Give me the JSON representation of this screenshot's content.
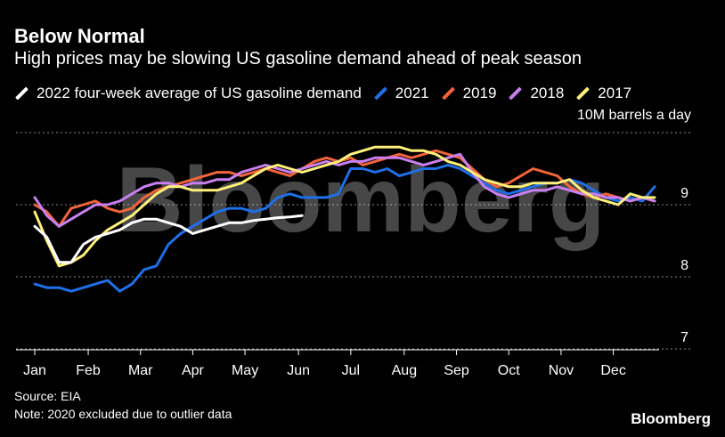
{
  "header": {
    "title": "Below Normal",
    "subtitle": "High prices may be slowing US gasoline demand ahead of peak season"
  },
  "unit_label": "10M barrels a day",
  "footer": {
    "source": "Source: EIA",
    "note": "Note: 2020 excluded due to outlier data",
    "brand": "Bloomberg"
  },
  "watermark": "Bloomberg",
  "colors": {
    "background": "#000000",
    "y2022": "#ffffff",
    "y2021": "#1f6fe8",
    "y2019": "#f2643a",
    "y2018": "#c87ff0",
    "y2017": "#fff07a",
    "grid": "#8a8a8a"
  },
  "chart_data": {
    "type": "line",
    "title": "Below Normal",
    "subtitle": "High prices may be slowing US gasoline demand ahead of peak season",
    "ylabel": "10M barrels a day",
    "xlabel": "",
    "x_tick_labels": [
      "Jan",
      "Feb",
      "Mar",
      "Apr",
      "May",
      "Jun",
      "Jul",
      "Aug",
      "Sep",
      "Oct",
      "Nov",
      "Dec"
    ],
    "y_ticks": [
      7,
      8,
      9
    ],
    "ylim": [
      7,
      10
    ],
    "x_unit": "week of year",
    "grid": "horizontal dotted",
    "legend_position": "top",
    "series": [
      {
        "name": "2022 four-week average of US gasoline demand",
        "color": "#ffffff",
        "x": [
          1,
          2,
          3,
          4,
          5,
          6,
          7,
          8,
          9,
          10,
          11,
          12,
          13,
          14,
          15,
          16,
          17,
          18,
          19,
          20,
          21,
          22,
          23
        ],
        "values": [
          8.7,
          8.55,
          8.2,
          8.2,
          8.45,
          8.55,
          8.6,
          8.65,
          8.75,
          8.8,
          8.8,
          8.75,
          8.7,
          8.6,
          8.65,
          8.7,
          8.75,
          8.75,
          8.78,
          8.8,
          8.82,
          8.83,
          8.85
        ]
      },
      {
        "name": "2021",
        "color": "#1f6fe8",
        "x": [
          1,
          2,
          3,
          4,
          5,
          6,
          7,
          8,
          9,
          10,
          11,
          12,
          13,
          14,
          15,
          16,
          17,
          18,
          19,
          20,
          21,
          22,
          23,
          24,
          25,
          26,
          27,
          28,
          29,
          30,
          31,
          32,
          33,
          34,
          35,
          36,
          37,
          38,
          39,
          40,
          41,
          42,
          43,
          44,
          45,
          46,
          47,
          48,
          49,
          50,
          51,
          52
        ],
        "values": [
          7.9,
          7.85,
          7.85,
          7.8,
          7.85,
          7.9,
          7.95,
          7.8,
          7.9,
          8.1,
          8.15,
          8.45,
          8.6,
          8.7,
          8.8,
          8.9,
          8.95,
          8.95,
          8.9,
          8.95,
          9.1,
          9.15,
          9.1,
          9.1,
          9.1,
          9.15,
          9.5,
          9.5,
          9.45,
          9.5,
          9.4,
          9.45,
          9.5,
          9.5,
          9.55,
          9.5,
          9.4,
          9.3,
          9.2,
          9.15,
          9.2,
          9.25,
          9.3,
          9.3,
          9.35,
          9.3,
          9.2,
          9.1,
          9.05,
          9.1,
          9.05,
          9.25
        ]
      },
      {
        "name": "2019",
        "color": "#f2643a",
        "x": [
          1,
          2,
          3,
          4,
          5,
          6,
          7,
          8,
          9,
          10,
          11,
          12,
          13,
          14,
          15,
          16,
          17,
          18,
          19,
          20,
          21,
          22,
          23,
          24,
          25,
          26,
          27,
          28,
          29,
          30,
          31,
          32,
          33,
          34,
          35,
          36,
          37,
          38,
          39,
          40,
          41,
          42,
          43,
          44,
          45,
          46,
          47,
          48,
          49,
          50,
          51,
          52
        ],
        "values": [
          9.0,
          8.9,
          8.7,
          8.95,
          9.0,
          9.05,
          8.95,
          8.9,
          8.95,
          9.1,
          9.2,
          9.25,
          9.3,
          9.35,
          9.4,
          9.45,
          9.45,
          9.4,
          9.45,
          9.5,
          9.45,
          9.4,
          9.5,
          9.6,
          9.65,
          9.6,
          9.65,
          9.55,
          9.6,
          9.65,
          9.7,
          9.65,
          9.7,
          9.75,
          9.7,
          9.65,
          9.5,
          9.35,
          9.25,
          9.3,
          9.4,
          9.5,
          9.45,
          9.4,
          9.25,
          9.15,
          9.1,
          9.15,
          9.1,
          9.05,
          9.1,
          9.05
        ]
      },
      {
        "name": "2018",
        "color": "#c87ff0",
        "x": [
          1,
          2,
          3,
          4,
          5,
          6,
          7,
          8,
          9,
          10,
          11,
          12,
          13,
          14,
          15,
          16,
          17,
          18,
          19,
          20,
          21,
          22,
          23,
          24,
          25,
          26,
          27,
          28,
          29,
          30,
          31,
          32,
          33,
          34,
          35,
          36,
          37,
          38,
          39,
          40,
          41,
          42,
          43,
          44,
          45,
          46,
          47,
          48,
          49,
          50,
          51,
          52
        ],
        "values": [
          9.1,
          8.85,
          8.7,
          8.8,
          8.9,
          9.0,
          9.0,
          9.05,
          9.15,
          9.25,
          9.3,
          9.3,
          9.25,
          9.3,
          9.3,
          9.35,
          9.35,
          9.45,
          9.5,
          9.55,
          9.5,
          9.45,
          9.5,
          9.55,
          9.6,
          9.55,
          9.6,
          9.6,
          9.65,
          9.65,
          9.65,
          9.6,
          9.55,
          9.6,
          9.65,
          9.7,
          9.45,
          9.25,
          9.15,
          9.1,
          9.15,
          9.2,
          9.2,
          9.25,
          9.2,
          9.15,
          9.15,
          9.1,
          9.1,
          9.05,
          9.1,
          9.05
        ]
      },
      {
        "name": "2017",
        "color": "#fff07a",
        "x": [
          1,
          2,
          3,
          4,
          5,
          6,
          7,
          8,
          9,
          10,
          11,
          12,
          13,
          14,
          15,
          16,
          17,
          18,
          19,
          20,
          21,
          22,
          23,
          24,
          25,
          26,
          27,
          28,
          29,
          30,
          31,
          32,
          33,
          34,
          35,
          36,
          37,
          38,
          39,
          40,
          41,
          42,
          43,
          44,
          45,
          46,
          47,
          48,
          49,
          50,
          51,
          52
        ],
        "values": [
          8.9,
          8.5,
          8.15,
          8.2,
          8.3,
          8.5,
          8.65,
          8.75,
          8.85,
          9.0,
          9.15,
          9.25,
          9.25,
          9.2,
          9.2,
          9.2,
          9.25,
          9.3,
          9.4,
          9.5,
          9.55,
          9.5,
          9.45,
          9.5,
          9.55,
          9.6,
          9.7,
          9.75,
          9.8,
          9.8,
          9.8,
          9.75,
          9.75,
          9.7,
          9.6,
          9.55,
          9.45,
          9.35,
          9.3,
          9.25,
          9.25,
          9.3,
          9.3,
          9.3,
          9.35,
          9.2,
          9.1,
          9.05,
          9.0,
          9.15,
          9.1,
          9.1
        ]
      }
    ]
  }
}
